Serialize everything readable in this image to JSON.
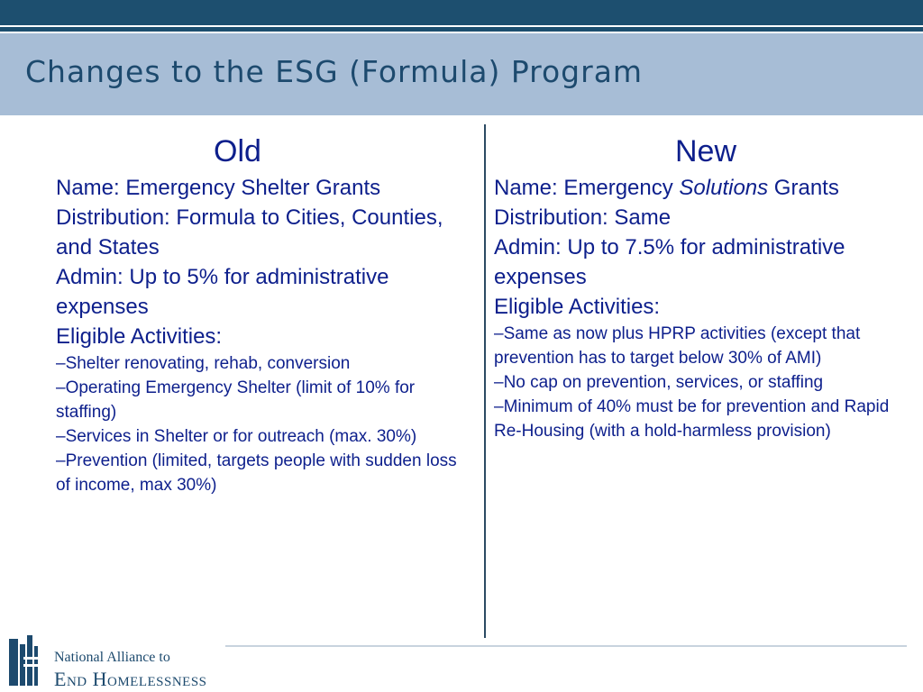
{
  "slide": {
    "title": "Changes to the ESG (Formula) Program"
  },
  "old": {
    "heading": "Old",
    "name": "Name: Emergency Shelter Grants",
    "distribution": "Distribution: Formula to Cities, Counties, and States",
    "admin": "Admin: Up to 5% for administrative expenses",
    "eligible": "Eligible Activities:",
    "items": [
      "–Shelter renovating, rehab, conversion",
      "–Operating Emergency Shelter (limit of 10% for staffing)",
      "–Services in Shelter or for outreach (max. 30%)",
      "–Prevention (limited, targets people with sudden loss of income, max 30%)"
    ]
  },
  "new": {
    "heading": "New",
    "name_prefix": "Name: Emergency ",
    "name_emph": "Solutions",
    "name_suffix": " Grants",
    "distribution": "Distribution: Same",
    "admin": "Admin: Up to 7.5% for administrative expenses",
    "eligible": "Eligible Activities:",
    "items": [
      "–Same as now plus HPRP activities (except that prevention has to target below 30% of AMI)",
      "–No cap on prevention, services, or staffing",
      "–Minimum of 40% must be for prevention and Rapid Re-Housing (with a hold-harmless provision)"
    ]
  },
  "footer": {
    "logo_line1": "National Alliance to",
    "logo_line2": "End Homelessness",
    "logo_color": "#1d4a6e"
  },
  "colors": {
    "header_band": "#a7bdd6",
    "top_bar": "#1d4f6f",
    "body_text": "#0d1f8c"
  }
}
